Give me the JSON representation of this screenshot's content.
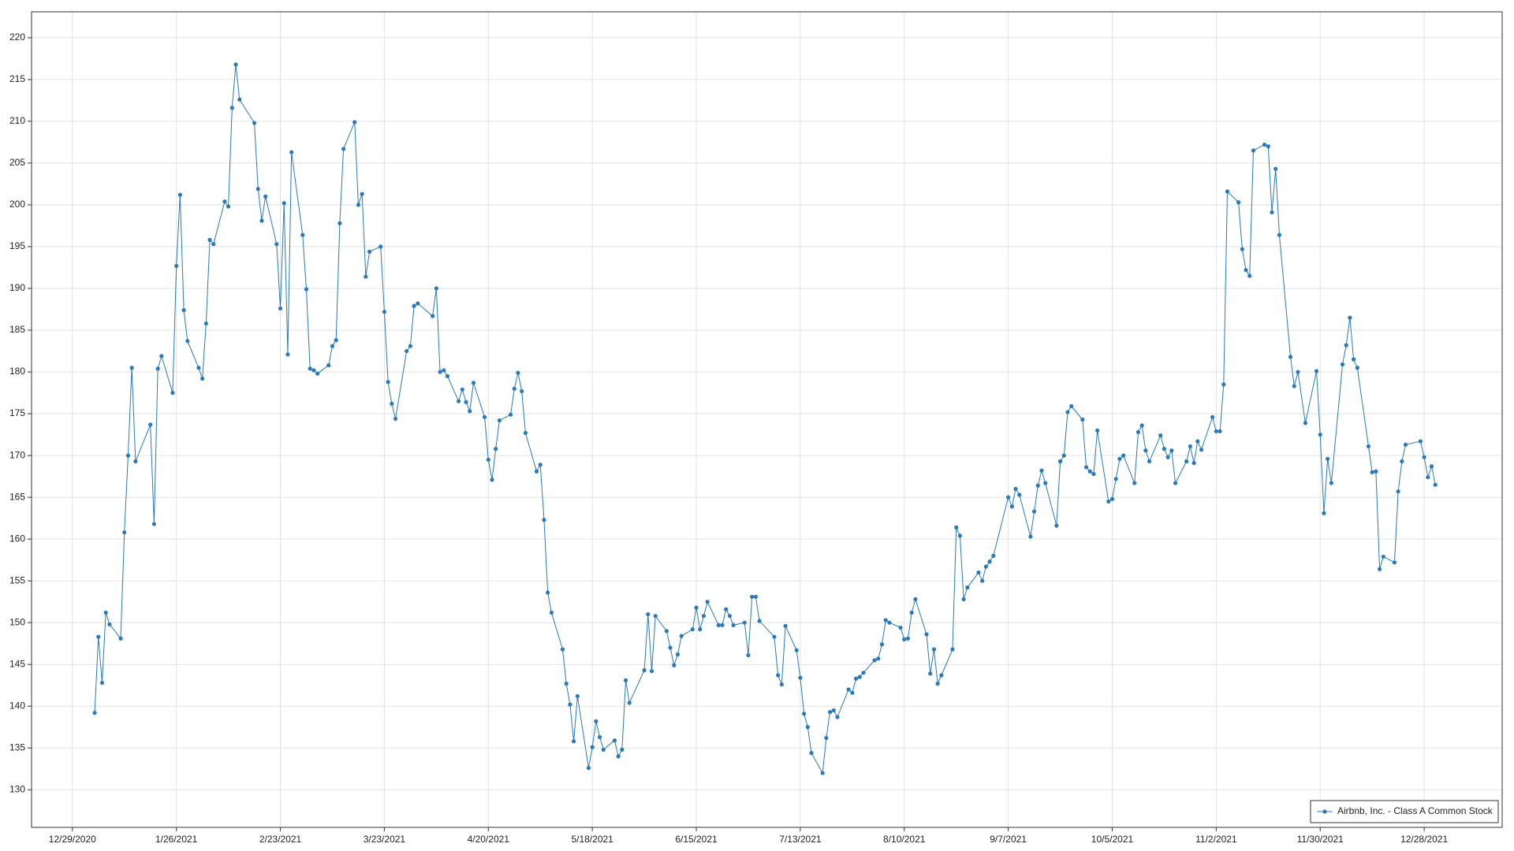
{
  "chart_data": {
    "type": "line",
    "x": [
      "1/4/2021",
      "1/5/2021",
      "1/6/2021",
      "1/7/2021",
      "1/8/2021",
      "1/11/2021",
      "1/12/2021",
      "1/13/2021",
      "1/14/2021",
      "1/15/2021",
      "1/19/2021",
      "1/20/2021",
      "1/21/2021",
      "1/22/2021",
      "1/25/2021",
      "1/26/2021",
      "1/27/2021",
      "1/28/2021",
      "1/29/2021",
      "2/1/2021",
      "2/2/2021",
      "2/3/2021",
      "2/4/2021",
      "2/5/2021",
      "2/8/2021",
      "2/9/2021",
      "2/10/2021",
      "2/11/2021",
      "2/12/2021",
      "2/16/2021",
      "2/17/2021",
      "2/18/2021",
      "2/19/2021",
      "2/22/2021",
      "2/23/2021",
      "2/24/2021",
      "2/25/2021",
      "2/26/2021",
      "3/1/2021",
      "3/2/2021",
      "3/3/2021",
      "3/4/2021",
      "3/5/2021",
      "3/8/2021",
      "3/9/2021",
      "3/10/2021",
      "3/11/2021",
      "3/12/2021",
      "3/15/2021",
      "3/16/2021",
      "3/17/2021",
      "3/18/2021",
      "3/19/2021",
      "3/22/2021",
      "3/23/2021",
      "3/24/2021",
      "3/25/2021",
      "3/26/2021",
      "3/29/2021",
      "3/30/2021",
      "3/31/2021",
      "4/1/2021",
      "4/5/2021",
      "4/6/2021",
      "4/7/2021",
      "4/8/2021",
      "4/9/2021",
      "4/12/2021",
      "4/13/2021",
      "4/14/2021",
      "4/15/2021",
      "4/16/2021",
      "4/19/2021",
      "4/20/2021",
      "4/21/2021",
      "4/22/2021",
      "4/23/2021",
      "4/26/2021",
      "4/27/2021",
      "4/28/2021",
      "4/29/2021",
      "4/30/2021",
      "5/3/2021",
      "5/4/2021",
      "5/5/2021",
      "5/6/2021",
      "5/7/2021",
      "5/10/2021",
      "5/11/2021",
      "5/12/2021",
      "5/13/2021",
      "5/14/2021",
      "5/17/2021",
      "5/18/2021",
      "5/19/2021",
      "5/20/2021",
      "5/21/2021",
      "5/24/2021",
      "5/25/2021",
      "5/26/2021",
      "5/27/2021",
      "5/28/2021",
      "6/1/2021",
      "6/2/2021",
      "6/3/2021",
      "6/4/2021",
      "6/7/2021",
      "6/8/2021",
      "6/9/2021",
      "6/10/2021",
      "6/11/2021",
      "6/14/2021",
      "6/15/2021",
      "6/16/2021",
      "6/17/2021",
      "6/18/2021",
      "6/21/2021",
      "6/22/2021",
      "6/23/2021",
      "6/24/2021",
      "6/25/2021",
      "6/28/2021",
      "6/29/2021",
      "6/30/2021",
      "7/1/2021",
      "7/2/2021",
      "7/6/2021",
      "7/7/2021",
      "7/8/2021",
      "7/9/2021",
      "7/12/2021",
      "7/13/2021",
      "7/14/2021",
      "7/15/2021",
      "7/16/2021",
      "7/19/2021",
      "7/20/2021",
      "7/21/2021",
      "7/22/2021",
      "7/23/2021",
      "7/26/2021",
      "7/27/2021",
      "7/28/2021",
      "7/29/2021",
      "7/30/2021",
      "8/2/2021",
      "8/3/2021",
      "8/4/2021",
      "8/5/2021",
      "8/6/2021",
      "8/9/2021",
      "8/10/2021",
      "8/11/2021",
      "8/12/2021",
      "8/13/2021",
      "8/16/2021",
      "8/17/2021",
      "8/18/2021",
      "8/19/2021",
      "8/20/2021",
      "8/23/2021",
      "8/24/2021",
      "8/25/2021",
      "8/26/2021",
      "8/27/2021",
      "8/30/2021",
      "8/31/2021",
      "9/1/2021",
      "9/2/2021",
      "9/3/2021",
      "9/7/2021",
      "9/8/2021",
      "9/9/2021",
      "9/10/2021",
      "9/13/2021",
      "9/14/2021",
      "9/15/2021",
      "9/16/2021",
      "9/17/2021",
      "9/20/2021",
      "9/21/2021",
      "9/22/2021",
      "9/23/2021",
      "9/24/2021",
      "9/27/2021",
      "9/28/2021",
      "9/29/2021",
      "9/30/2021",
      "10/1/2021",
      "10/4/2021",
      "10/5/2021",
      "10/6/2021",
      "10/7/2021",
      "10/8/2021",
      "10/11/2021",
      "10/12/2021",
      "10/13/2021",
      "10/14/2021",
      "10/15/2021",
      "10/18/2021",
      "10/19/2021",
      "10/20/2021",
      "10/21/2021",
      "10/22/2021",
      "10/25/2021",
      "10/26/2021",
      "10/27/2021",
      "10/28/2021",
      "10/29/2021",
      "11/1/2021",
      "11/2/2021",
      "11/3/2021",
      "11/4/2021",
      "11/5/2021",
      "11/8/2021",
      "11/9/2021",
      "11/10/2021",
      "11/11/2021",
      "11/12/2021",
      "11/15/2021",
      "11/16/2021",
      "11/17/2021",
      "11/18/2021",
      "11/19/2021",
      "11/22/2021",
      "11/23/2021",
      "11/24/2021",
      "11/26/2021",
      "11/29/2021",
      "11/30/2021",
      "12/1/2021",
      "12/2/2021",
      "12/3/2021",
      "12/6/2021",
      "12/7/2021",
      "12/8/2021",
      "12/9/2021",
      "12/10/2021",
      "12/13/2021",
      "12/14/2021",
      "12/15/2021",
      "12/16/2021",
      "12/17/2021",
      "12/20/2021",
      "12/21/2021",
      "12/22/2021",
      "12/23/2021",
      "12/27/2021",
      "12/28/2021",
      "12/29/2021",
      "12/30/2021",
      "12/31/2021"
    ],
    "series": [
      {
        "name": "Airbnb, Inc. - Class A Common Stock",
        "color": "#2a7ab9",
        "values": [
          139.2,
          148.3,
          142.8,
          151.2,
          149.8,
          148.1,
          160.8,
          170.0,
          180.5,
          169.3,
          173.7,
          161.8,
          180.4,
          181.9,
          177.5,
          192.7,
          201.2,
          187.4,
          183.7,
          180.5,
          179.2,
          185.8,
          195.8,
          195.3,
          200.4,
          199.8,
          211.6,
          216.8,
          212.6,
          209.8,
          201.9,
          198.1,
          201.0,
          195.3,
          187.6,
          200.2,
          182.1,
          206.3,
          196.4,
          189.9,
          180.4,
          180.2,
          179.8,
          180.8,
          183.1,
          183.8,
          197.8,
          206.7,
          209.9,
          200.0,
          201.3,
          191.4,
          194.4,
          195.0,
          187.2,
          178.8,
          176.2,
          174.4,
          182.5,
          183.1,
          187.9,
          188.2,
          186.7,
          190.0,
          180.0,
          180.2,
          179.5,
          176.5,
          177.9,
          176.4,
          175.3,
          178.7,
          174.6,
          169.5,
          167.1,
          170.8,
          174.2,
          174.9,
          178.0,
          179.9,
          177.7,
          172.7,
          168.1,
          168.9,
          162.3,
          153.6,
          151.2,
          146.8,
          142.7,
          140.2,
          135.8,
          141.2,
          132.6,
          135.1,
          138.2,
          136.3,
          134.8,
          135.9,
          134.0,
          134.8,
          143.1,
          140.4,
          144.3,
          151.0,
          144.2,
          150.8,
          149.0,
          147.0,
          144.9,
          146.2,
          148.4,
          149.2,
          151.8,
          149.2,
          150.8,
          152.5,
          149.7,
          149.7,
          151.6,
          150.8,
          149.7,
          150.0,
          146.1,
          153.1,
          153.1,
          150.2,
          148.3,
          143.7,
          142.6,
          149.6,
          146.7,
          143.4,
          139.1,
          137.5,
          134.4,
          132.0,
          136.2,
          139.3,
          139.5,
          138.7,
          142.0,
          141.6,
          143.3,
          143.5,
          144.0,
          145.5,
          145.7,
          147.4,
          150.3,
          150.0,
          149.4,
          148.0,
          148.1,
          151.2,
          152.8,
          148.6,
          143.9,
          146.8,
          142.7,
          143.7,
          146.8,
          161.4,
          160.4,
          152.8,
          154.2,
          156.0,
          155.0,
          156.7,
          157.3,
          158.0,
          165.0,
          163.9,
          166.0,
          165.3,
          160.3,
          163.3,
          166.4,
          168.2,
          166.7,
          161.6,
          169.3,
          170.0,
          175.2,
          175.9,
          174.3,
          168.6,
          168.1,
          167.8,
          173.0,
          164.5,
          164.8,
          167.2,
          169.6,
          170.0,
          166.7,
          172.8,
          173.6,
          170.6,
          169.3,
          172.4,
          170.8,
          169.8,
          170.6,
          166.7,
          169.3,
          171.1,
          169.1,
          171.7,
          170.7,
          174.6,
          172.9,
          172.9,
          178.5,
          201.6,
          200.3,
          194.7,
          192.2,
          191.5,
          206.5,
          207.2,
          207.0,
          199.1,
          204.3,
          196.4,
          181.8,
          178.3,
          180.0,
          173.9,
          180.1,
          172.5,
          163.1,
          169.6,
          166.7,
          180.9,
          183.2,
          186.5,
          181.5,
          180.5,
          171.1,
          168.0,
          168.1,
          156.4,
          157.9,
          157.2,
          165.7,
          169.3,
          171.3,
          171.7,
          169.8,
          167.4,
          168.7,
          166.5
        ]
      }
    ],
    "xlim": [
      "12/18/2020",
      "1/18/2022"
    ],
    "xticks": [
      "12/29/2020",
      "1/26/2021",
      "2/23/2021",
      "3/23/2021",
      "4/20/2021",
      "5/18/2021",
      "6/15/2021",
      "7/13/2021",
      "8/10/2021",
      "9/7/2021",
      "10/5/2021",
      "11/2/2021",
      "11/30/2021",
      "12/28/2021"
    ],
    "ylim": [
      125.5,
      223.1
    ],
    "yticks": [
      130,
      135,
      140,
      145,
      150,
      155,
      160,
      165,
      170,
      175,
      180,
      185,
      190,
      195,
      200,
      205,
      210,
      215,
      220
    ],
    "grid": true,
    "legend": "lower right"
  }
}
